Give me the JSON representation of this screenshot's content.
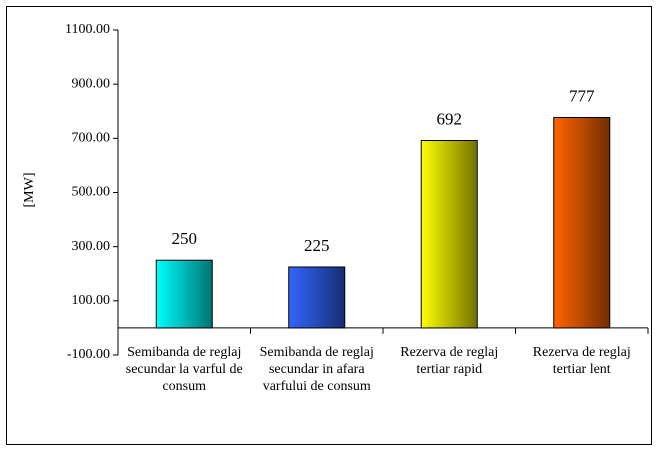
{
  "chart_data": {
    "type": "bar",
    "y_label": "[MW]",
    "categories": [
      "Semibanda de reglaj secundar la varful de consum",
      "Semibanda de reglaj secundar in afara varfului de consum",
      "Rezerva de reglaj tertiar rapid",
      "Rezerva de reglaj tertiar lent"
    ],
    "values": [
      250,
      225,
      692,
      777
    ],
    "colors": [
      "#00ffff",
      "#3366ff",
      "#ffff00",
      "#ff6600"
    ],
    "ylim": [
      -100,
      1100
    ],
    "yticks": [
      {
        "value": -100,
        "label": "-100.00"
      },
      {
        "value": 100,
        "label": "100.00"
      },
      {
        "value": 300,
        "label": "300.00"
      },
      {
        "value": 500,
        "label": "500.00"
      },
      {
        "value": 700,
        "label": "700.00"
      },
      {
        "value": 900,
        "label": "900.00"
      },
      {
        "value": 1100,
        "label": "1100.00"
      }
    ]
  }
}
